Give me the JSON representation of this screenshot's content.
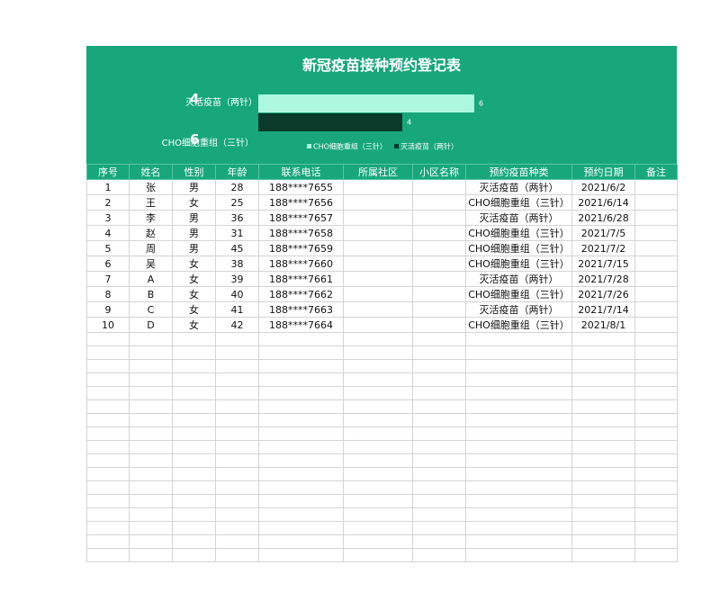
{
  "title": "新冠疫苗接种预约登记表",
  "summary": [
    {
      "label": "灭活疫苗（两针）",
      "value": 4
    },
    {
      "label": "CHO细胞重组（三针）",
      "value": 6
    }
  ],
  "chart_data": {
    "type": "bar",
    "orientation": "horizontal",
    "series": [
      {
        "name": "CHO细胞重组（三针）",
        "color": "#aef7df",
        "values": [
          6
        ]
      },
      {
        "name": "灭活疫苗（两针）",
        "color": "#0b3a2a",
        "values": [
          4
        ]
      }
    ]
  },
  "table": {
    "columns": [
      "序号",
      "姓名",
      "性别",
      "年龄",
      "联系电话",
      "所属社区",
      "小区名称",
      "预约疫苗种类",
      "预约日期",
      "备注"
    ],
    "rows": [
      {
        "no": 1,
        "name": "张",
        "gender": "男",
        "age": 28,
        "phone": "188****7655",
        "vaccine": "灭活疫苗（两针）",
        "date": "2021/6/2"
      },
      {
        "no": 2,
        "name": "王",
        "gender": "女",
        "age": 25,
        "phone": "188****7656",
        "vaccine": "CHO细胞重组（三针）",
        "date": "2021/6/14"
      },
      {
        "no": 3,
        "name": "李",
        "gender": "男",
        "age": 36,
        "phone": "188****7657",
        "vaccine": "灭活疫苗（两针）",
        "date": "2021/6/28"
      },
      {
        "no": 4,
        "name": "赵",
        "gender": "男",
        "age": 31,
        "phone": "188****7658",
        "vaccine": "CHO细胞重组（三针）",
        "date": "2021/7/5"
      },
      {
        "no": 5,
        "name": "周",
        "gender": "男",
        "age": 45,
        "phone": "188****7659",
        "vaccine": "CHO细胞重组（三针）",
        "date": "2021/7/2"
      },
      {
        "no": 6,
        "name": "吴",
        "gender": "女",
        "age": 38,
        "phone": "188****7660",
        "vaccine": "CHO细胞重组（三针）",
        "date": "2021/7/15"
      },
      {
        "no": 7,
        "name": "A",
        "gender": "女",
        "age": 39,
        "phone": "188****7661",
        "vaccine": "灭活疫苗（两针）",
        "date": "2021/7/28"
      },
      {
        "no": 8,
        "name": "B",
        "gender": "女",
        "age": 40,
        "phone": "188****7662",
        "vaccine": "CHO细胞重组（三针）",
        "date": "2021/7/26"
      },
      {
        "no": 9,
        "name": "C",
        "gender": "女",
        "age": 41,
        "phone": "188****7663",
        "vaccine": "灭活疫苗（两针）",
        "date": "2021/7/14"
      },
      {
        "no": 10,
        "name": "D",
        "gender": "女",
        "age": 42,
        "phone": "188****7664",
        "vaccine": "CHO细胞重组（三针）",
        "date": "2021/8/1"
      }
    ]
  }
}
